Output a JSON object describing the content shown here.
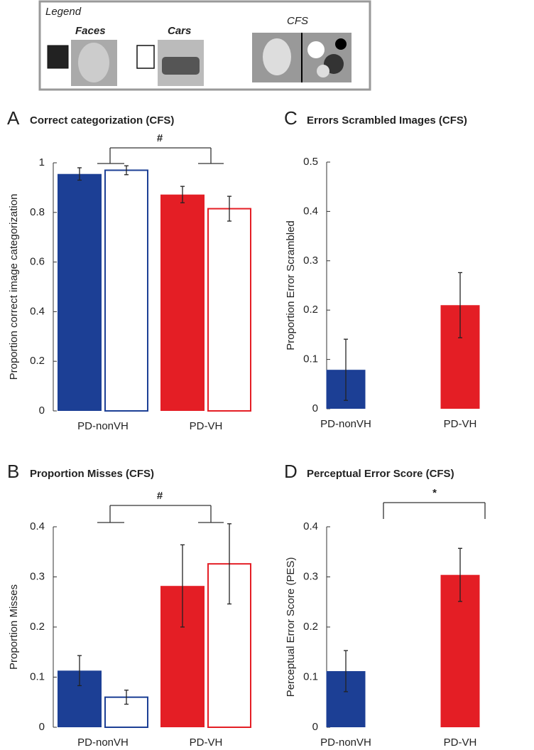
{
  "legend": {
    "title": "Legend",
    "faces": "Faces",
    "cars": "Cars",
    "cfs": "CFS"
  },
  "chart_data": [
    {
      "type": "bar",
      "letter": "A",
      "title": "Correct categorization (CFS)",
      "ylabel": "Proportion correct image categorization",
      "categories": [
        "PD-nonVH",
        "PD-VH"
      ],
      "colors": [
        "#1c3f95",
        "#e41e25"
      ],
      "series": [
        {
          "style": "filled",
          "values": [
            0.955,
            0.872
          ],
          "errors": [
            0.025,
            0.033
          ]
        },
        {
          "style": "outline",
          "values": [
            0.97,
            0.815
          ],
          "errors": [
            0.018,
            0.05
          ]
        }
      ],
      "ylim": [
        0,
        1
      ],
      "yticks": [
        0,
        0.2,
        0.4,
        0.6,
        0.8,
        1
      ],
      "significance": "#"
    },
    {
      "type": "bar",
      "letter": "B",
      "title": "Proportion Misses (CFS)",
      "ylabel": "Proportion Misses",
      "categories": [
        "PD-nonVH",
        "PD-VH"
      ],
      "colors": [
        "#1c3f95",
        "#e41e25"
      ],
      "series": [
        {
          "style": "filled",
          "values": [
            0.113,
            0.282
          ],
          "errors": [
            0.03,
            0.082
          ]
        },
        {
          "style": "outline",
          "values": [
            0.06,
            0.326
          ],
          "errors": [
            0.014,
            0.08
          ]
        }
      ],
      "ylim": [
        0,
        0.4
      ],
      "yticks": [
        0,
        0.1,
        0.2,
        0.3,
        0.4
      ],
      "significance": "#"
    },
    {
      "type": "bar",
      "letter": "C",
      "title": "Errors Scrambled Images (CFS)",
      "ylabel": "Proportion Error Scrambled",
      "categories": [
        "PD-nonVH",
        "PD-VH"
      ],
      "colors": [
        "#1c3f95",
        "#e41e25"
      ],
      "series": [
        {
          "style": "filled",
          "values": [
            0.079,
            0.21
          ],
          "errors": [
            0.062,
            0.066
          ]
        }
      ],
      "ylim": [
        0,
        0.5
      ],
      "yticks": [
        0,
        0.1,
        0.2,
        0.3,
        0.4,
        0.5
      ]
    },
    {
      "type": "bar",
      "letter": "D",
      "title": "Perceptual Error Score (CFS)",
      "ylabel": "Perceptual Error Score (PES)",
      "categories": [
        "PD-nonVH",
        "PD-VH"
      ],
      "colors": [
        "#1c3f95",
        "#e41e25"
      ],
      "series": [
        {
          "style": "filled",
          "values": [
            0.112,
            0.304
          ],
          "errors": [
            0.041,
            0.053
          ]
        }
      ],
      "ylim": [
        0,
        0.4
      ],
      "yticks": [
        0,
        0.1,
        0.2,
        0.3,
        0.4
      ],
      "significance": "*"
    }
  ]
}
